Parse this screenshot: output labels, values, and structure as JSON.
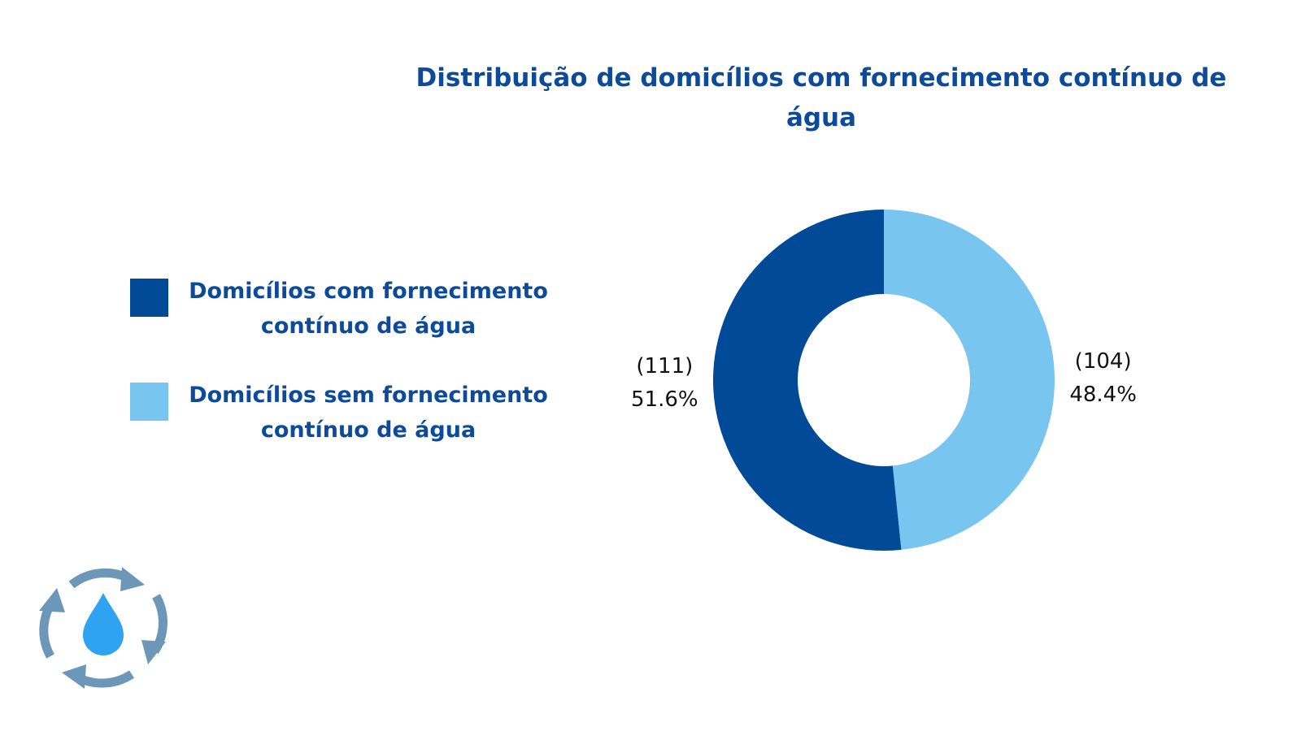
{
  "chart_data": {
    "type": "pie",
    "title": "Distribuição de domicílios com fornecimento contínuo de água",
    "donut": true,
    "legend_position": "left",
    "slices": [
      {
        "label": "Domicílios com fornecimento contínuo de água",
        "value": 111,
        "percent": 51.6,
        "count_label": "(111)",
        "percent_label": "51.6%",
        "color": "#004a97"
      },
      {
        "label": "Domicílios sem fornecimento contínuo de água",
        "value": 104,
        "percent": 48.4,
        "count_label": "(104)",
        "percent_label": "48.4%",
        "color": "#78c5f0"
      }
    ]
  },
  "logo": {
    "icon": "water-drop-recycle-icon",
    "arrow_color": "#6c97b8",
    "drop_color": "#2ea3f2"
  }
}
